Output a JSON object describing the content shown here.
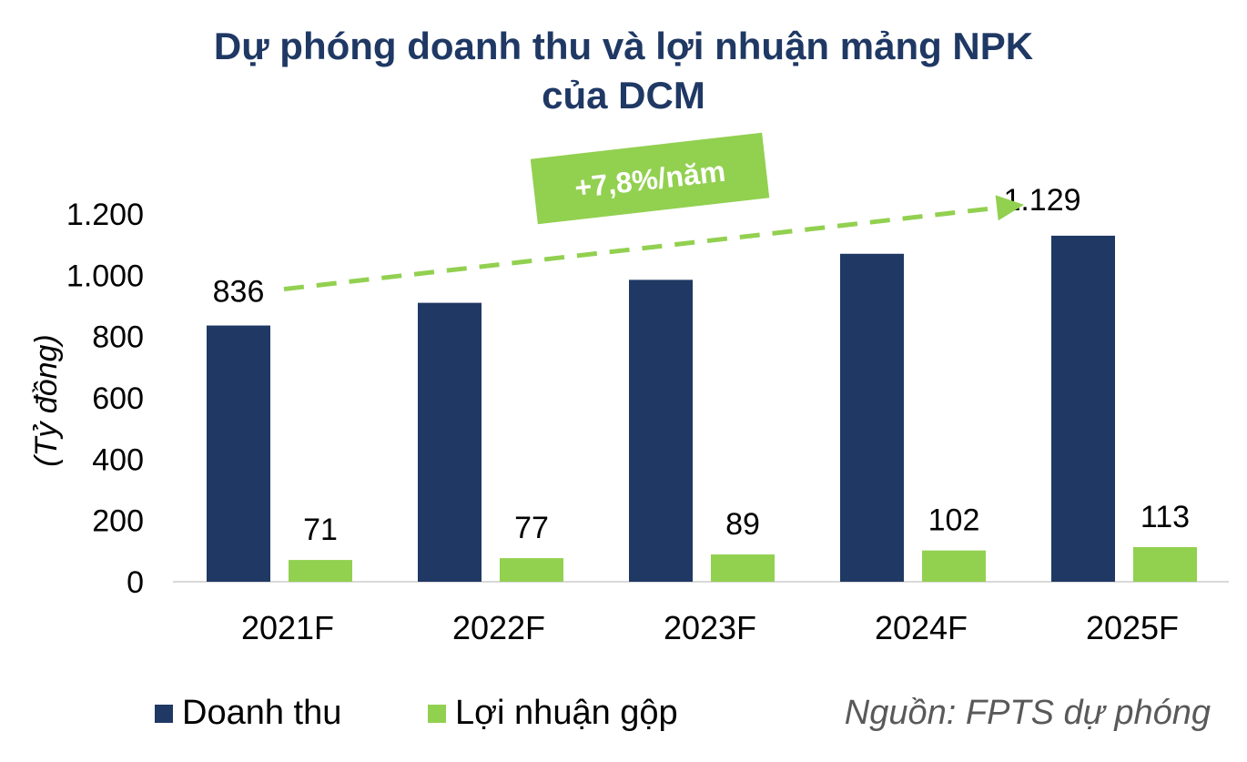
{
  "colors": {
    "title": "#1f3864",
    "revenue": "#1f3864",
    "profit": "#92d050",
    "axis_line": "#d9d9d9",
    "text": "#000000",
    "note": "#595959"
  },
  "chart_data": {
    "type": "bar",
    "title_lines": [
      "Dự phóng doanh thu và lợi nhuận mảng NPK",
      "của DCM"
    ],
    "ylabel": "(Tỷ đồng)",
    "xlabel": "",
    "ylim": [
      0,
      1200
    ],
    "yticks": [
      0,
      200,
      400,
      600,
      800,
      1000,
      1200
    ],
    "ytick_labels": [
      "0",
      "200",
      "400",
      "600",
      "800",
      "1.000",
      "1.200"
    ],
    "categories": [
      "2021F",
      "2022F",
      "2023F",
      "2024F",
      "2025F"
    ],
    "series": [
      {
        "name": "Doanh thu",
        "values": [
          836,
          910,
          985,
          1070,
          1129
        ],
        "data_labels": [
          "836",
          "",
          "",
          "",
          "1.129"
        ],
        "color": "#1f3864"
      },
      {
        "name": "Lợi nhuận gộp",
        "values": [
          71,
          77,
          89,
          102,
          113
        ],
        "data_labels": [
          "71",
          "77",
          "89",
          "102",
          "113"
        ],
        "color": "#92d050"
      }
    ],
    "annotation": {
      "text": "+7,8%/năm",
      "from_category": "2021F",
      "to_category": "2025F",
      "style": "dashed arrow",
      "color": "#92d050"
    },
    "grid": false,
    "legend_position": "bottom-left"
  },
  "legend": {
    "items": [
      {
        "label": "Doanh thu",
        "color": "#1f3864"
      },
      {
        "label": "Lợi nhuận gộp",
        "color": "#92d050"
      }
    ]
  },
  "source_note": "Nguồn: FPTS dự phóng"
}
